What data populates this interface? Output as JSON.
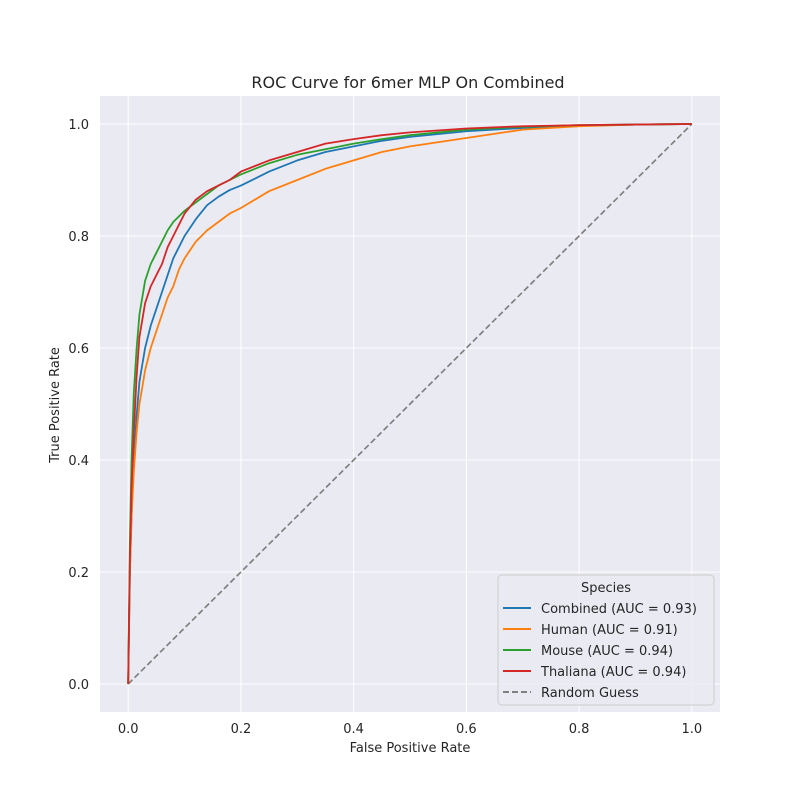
{
  "chart_data": {
    "type": "line",
    "title": "ROC Curve for 6mer MLP On Combined",
    "xlabel": "False Positive Rate",
    "ylabel": "True Positive Rate",
    "xlim": [
      -0.05,
      1.05
    ],
    "ylim": [
      -0.05,
      1.05
    ],
    "xticks": [
      0.0,
      0.2,
      0.4,
      0.6,
      0.8,
      1.0
    ],
    "xtick_labels": [
      "0.0",
      "0.2",
      "0.4",
      "0.6",
      "0.8",
      "1.0"
    ],
    "yticks": [
      0.0,
      0.2,
      0.4,
      0.6,
      0.8,
      1.0
    ],
    "ytick_labels": [
      "0.0",
      "0.2",
      "0.4",
      "0.6",
      "0.8",
      "1.0"
    ],
    "grid": true,
    "background": "#eaeaf2",
    "legend": {
      "title": "Species",
      "placement": "lower-right"
    },
    "series": [
      {
        "name": "Combined (AUC = 0.93)",
        "color": "#1f77b4",
        "style": "solid",
        "x": [
          0.0,
          0.003,
          0.006,
          0.01,
          0.015,
          0.02,
          0.03,
          0.04,
          0.05,
          0.06,
          0.07,
          0.08,
          0.09,
          0.1,
          0.12,
          0.14,
          0.16,
          0.18,
          0.2,
          0.25,
          0.3,
          0.35,
          0.4,
          0.45,
          0.5,
          0.6,
          0.7,
          0.8,
          0.9,
          1.0
        ],
        "y": [
          0.0,
          0.2,
          0.3,
          0.4,
          0.48,
          0.54,
          0.6,
          0.64,
          0.67,
          0.7,
          0.73,
          0.76,
          0.78,
          0.8,
          0.83,
          0.855,
          0.87,
          0.882,
          0.89,
          0.915,
          0.935,
          0.95,
          0.96,
          0.97,
          0.977,
          0.987,
          0.993,
          0.997,
          0.999,
          1.0
        ]
      },
      {
        "name": "Human (AUC = 0.91)",
        "color": "#ff7f0e",
        "style": "solid",
        "x": [
          0.0,
          0.003,
          0.006,
          0.01,
          0.015,
          0.02,
          0.03,
          0.04,
          0.05,
          0.06,
          0.07,
          0.08,
          0.09,
          0.1,
          0.12,
          0.14,
          0.16,
          0.18,
          0.2,
          0.25,
          0.3,
          0.35,
          0.4,
          0.45,
          0.5,
          0.6,
          0.7,
          0.8,
          0.9,
          1.0
        ],
        "y": [
          0.0,
          0.2,
          0.3,
          0.38,
          0.45,
          0.5,
          0.56,
          0.6,
          0.63,
          0.66,
          0.69,
          0.71,
          0.74,
          0.76,
          0.79,
          0.81,
          0.825,
          0.84,
          0.85,
          0.88,
          0.9,
          0.92,
          0.935,
          0.95,
          0.96,
          0.975,
          0.99,
          0.996,
          0.999,
          1.0
        ]
      },
      {
        "name": "Mouse (AUC = 0.94)",
        "color": "#2ca02c",
        "style": "solid",
        "x": [
          0.0,
          0.003,
          0.006,
          0.01,
          0.015,
          0.02,
          0.03,
          0.04,
          0.05,
          0.06,
          0.07,
          0.08,
          0.09,
          0.1,
          0.12,
          0.14,
          0.16,
          0.18,
          0.2,
          0.25,
          0.3,
          0.35,
          0.4,
          0.45,
          0.5,
          0.6,
          0.7,
          0.8,
          0.9,
          1.0
        ],
        "y": [
          0.0,
          0.25,
          0.4,
          0.52,
          0.6,
          0.66,
          0.72,
          0.75,
          0.77,
          0.79,
          0.81,
          0.825,
          0.835,
          0.845,
          0.86,
          0.875,
          0.89,
          0.9,
          0.91,
          0.93,
          0.945,
          0.955,
          0.965,
          0.973,
          0.98,
          0.99,
          0.995,
          0.998,
          0.999,
          1.0
        ]
      },
      {
        "name": "Thaliana (AUC = 0.94)",
        "color": "#d62728",
        "style": "solid",
        "x": [
          0.0,
          0.003,
          0.006,
          0.01,
          0.015,
          0.02,
          0.03,
          0.04,
          0.05,
          0.06,
          0.07,
          0.08,
          0.09,
          0.1,
          0.12,
          0.14,
          0.16,
          0.18,
          0.2,
          0.25,
          0.3,
          0.35,
          0.4,
          0.45,
          0.5,
          0.6,
          0.7,
          0.8,
          0.9,
          1.0
        ],
        "y": [
          0.0,
          0.22,
          0.35,
          0.45,
          0.55,
          0.62,
          0.68,
          0.71,
          0.73,
          0.75,
          0.78,
          0.8,
          0.82,
          0.84,
          0.865,
          0.88,
          0.89,
          0.9,
          0.915,
          0.935,
          0.95,
          0.965,
          0.973,
          0.98,
          0.985,
          0.992,
          0.996,
          0.998,
          0.999,
          1.0
        ]
      },
      {
        "name": "Random Guess",
        "color": "#808080",
        "style": "dashed",
        "x": [
          0.0,
          1.0
        ],
        "y": [
          0.0,
          1.0
        ]
      }
    ]
  }
}
